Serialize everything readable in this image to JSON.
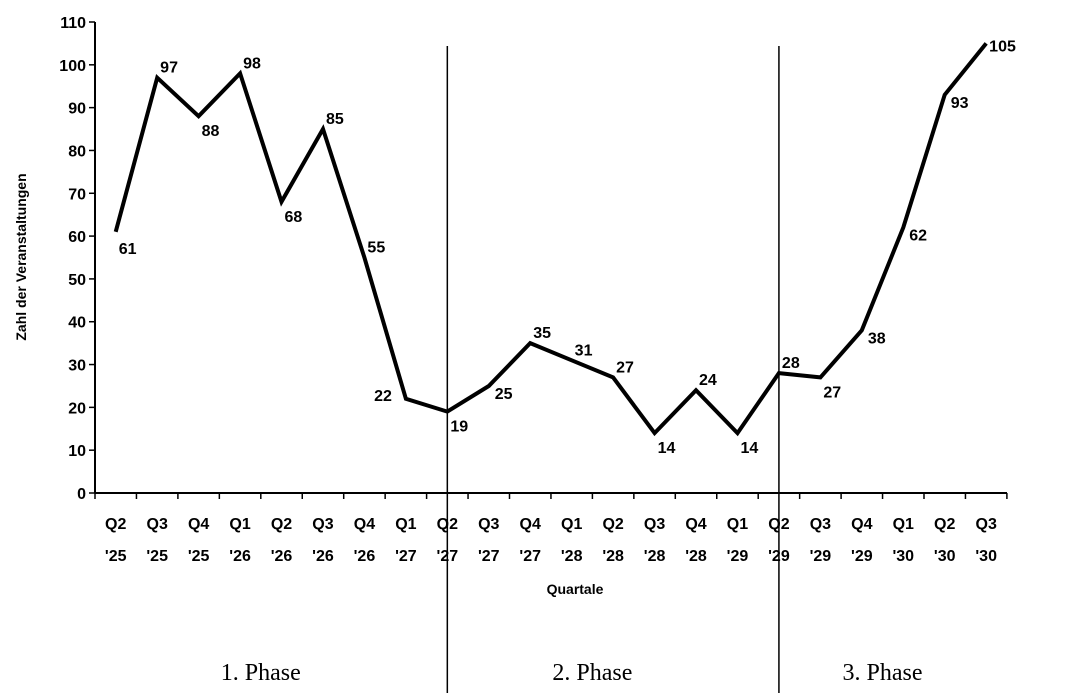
{
  "chart_data": {
    "type": "line",
    "xlabel": "Quartale",
    "ylabel": "Zahl der Veranstaltungen",
    "ylim": [
      0,
      110
    ],
    "yticks": [
      0,
      10,
      20,
      30,
      40,
      50,
      60,
      70,
      80,
      90,
      100,
      110
    ],
    "grid": false,
    "categories": [
      [
        "Q2",
        "'25"
      ],
      [
        "Q3",
        "'25"
      ],
      [
        "Q4",
        "'25"
      ],
      [
        "Q1",
        "'26"
      ],
      [
        "Q2",
        "'26"
      ],
      [
        "Q3",
        "'26"
      ],
      [
        "Q4",
        "'26"
      ],
      [
        "Q1",
        "'27"
      ],
      [
        "Q2",
        "'27"
      ],
      [
        "Q3",
        "'27"
      ],
      [
        "Q4",
        "'27"
      ],
      [
        "Q1",
        "'28"
      ],
      [
        "Q2",
        "'28"
      ],
      [
        "Q3",
        "'28"
      ],
      [
        "Q4",
        "'28"
      ],
      [
        "Q1",
        "'29"
      ],
      [
        "Q2",
        "'29"
      ],
      [
        "Q3",
        "'29"
      ],
      [
        "Q4",
        "'29"
      ],
      [
        "Q1",
        "'30"
      ],
      [
        "Q2",
        "'30"
      ],
      [
        "Q3",
        "'30"
      ]
    ],
    "series": [
      {
        "values": [
          61,
          97,
          88,
          98,
          68,
          85,
          55,
          22,
          19,
          25,
          35,
          31,
          27,
          14,
          24,
          14,
          28,
          27,
          38,
          62,
          93,
          105
        ],
        "color": "#000000"
      }
    ],
    "phases": [
      {
        "label": "1. Phase",
        "start_category": "Q2 '25",
        "end_category": "Q1 '27"
      },
      {
        "label": "2. Phase",
        "start_category": "Q2 '27",
        "end_category": "Q1 '29"
      },
      {
        "label": "3. Phase",
        "start_category": "Q2 '29",
        "end_category": "Q3 '30"
      }
    ],
    "phase_dividers_at": [
      "Q2 '27",
      "Q2 '29"
    ]
  }
}
